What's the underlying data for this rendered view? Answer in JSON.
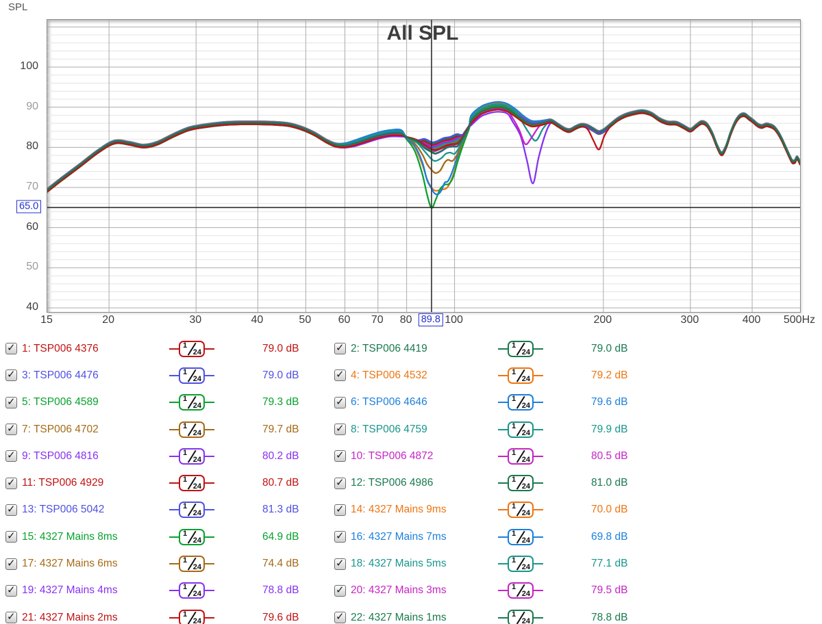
{
  "chart_data": {
    "type": "line",
    "title": "All SPL",
    "ylabel": "SPL",
    "x_unit": "Hz",
    "xlim": [
      15,
      500
    ],
    "ylim": [
      38.98,
      111.76
    ],
    "grid": {
      "minor_db_step": 2,
      "major_db_step": 10,
      "x_gridline_freqs": [
        20,
        30,
        40,
        50,
        60,
        70,
        80,
        90,
        100,
        200,
        300,
        400
      ]
    },
    "x_tick_labels": [
      {
        "f": 15,
        "t": "15"
      },
      {
        "f": 20,
        "t": "20"
      },
      {
        "f": 30,
        "t": "30"
      },
      {
        "f": 40,
        "t": "40"
      },
      {
        "f": 50,
        "t": "50"
      },
      {
        "f": 60,
        "t": "60"
      },
      {
        "f": 70,
        "t": "70"
      },
      {
        "f": 80,
        "t": "80"
      },
      {
        "f": 100,
        "t": "100"
      },
      {
        "f": 200,
        "t": "200"
      },
      {
        "f": 300,
        "t": "300"
      },
      {
        "f": 400,
        "t": "400"
      },
      {
        "f": 500,
        "t": "500Hz"
      }
    ],
    "y_tick_labels": [
      {
        "db": 100,
        "t": "100",
        "shade": "dark"
      },
      {
        "db": 90,
        "t": "90",
        "shade": "light"
      },
      {
        "db": 80,
        "t": "80",
        "shade": "dark"
      },
      {
        "db": 70,
        "t": "70",
        "shade": "light"
      },
      {
        "db": 60,
        "t": "60",
        "shade": "dark"
      },
      {
        "db": 50,
        "t": "50",
        "shade": "light"
      },
      {
        "db": 40,
        "t": "40",
        "shade": "dark"
      }
    ],
    "cursor": {
      "freq": 89.8,
      "db": 65.0,
      "freq_label": "89.8",
      "db_label": "65.0"
    },
    "base_low": [
      [
        15,
        69.3
      ],
      [
        16,
        72.0
      ],
      [
        17.5,
        75.6
      ],
      [
        19,
        79.0
      ],
      [
        20.5,
        81.3
      ],
      [
        22,
        81.0
      ],
      [
        23.5,
        80.3
      ],
      [
        25,
        81.0
      ],
      [
        27,
        83.0
      ],
      [
        29,
        84.6
      ],
      [
        31,
        85.3
      ],
      [
        34,
        85.9
      ],
      [
        37,
        86.1
      ],
      [
        40,
        86.1
      ],
      [
        43,
        86.0
      ],
      [
        46,
        85.7
      ],
      [
        49,
        84.8
      ],
      [
        52,
        83.4
      ],
      [
        55,
        81.6
      ],
      [
        57.5,
        80.5
      ],
      [
        60,
        80.3
      ],
      [
        63,
        80.8
      ],
      [
        66,
        81.6
      ],
      [
        70,
        82.6
      ],
      [
        74,
        83.2
      ],
      [
        78,
        83.2
      ]
    ],
    "base_high": [
      [
        108,
        86.2
      ],
      [
        113,
        88.4
      ],
      [
        118,
        89.3
      ],
      [
        123,
        89.6
      ],
      [
        128,
        89.1
      ],
      [
        133,
        87.8
      ],
      [
        138,
        86.4
      ],
      [
        143,
        85.5
      ],
      [
        148,
        85.7
      ],
      [
        153,
        86.2
      ],
      [
        157,
        86.5
      ],
      [
        162,
        85.5
      ],
      [
        167,
        84.5
      ],
      [
        171,
        84.2
      ],
      [
        176,
        85.0
      ],
      [
        181,
        85.5
      ],
      [
        186,
        85.2
      ],
      [
        191,
        84.4
      ],
      [
        196,
        83.7
      ],
      [
        201,
        84.3
      ],
      [
        207,
        85.6
      ],
      [
        214,
        87.0
      ],
      [
        222,
        88.0
      ],
      [
        231,
        88.6
      ],
      [
        240,
        88.9
      ],
      [
        250,
        88.3
      ],
      [
        260,
        86.9
      ],
      [
        270,
        86.1
      ],
      [
        281,
        86.0
      ],
      [
        291,
        85.1
      ],
      [
        300,
        84.3
      ],
      [
        308,
        85.3
      ],
      [
        316,
        86.2
      ],
      [
        324,
        85.6
      ],
      [
        332,
        83.4
      ],
      [
        340,
        80.2
      ],
      [
        347,
        78.4
      ],
      [
        354,
        80.1
      ],
      [
        362,
        83.6
      ],
      [
        370,
        86.3
      ],
      [
        378,
        87.8
      ],
      [
        386,
        88.1
      ],
      [
        394,
        87.3
      ],
      [
        402,
        86.5
      ],
      [
        410,
        85.6
      ],
      [
        418,
        85.2
      ],
      [
        427,
        85.6
      ],
      [
        435,
        85.4
      ],
      [
        443,
        84.9
      ],
      [
        451,
        83.7
      ],
      [
        459,
        82.0
      ],
      [
        467,
        80.0
      ],
      [
        475,
        78.0
      ],
      [
        482,
        76.5
      ],
      [
        488,
        76.5
      ],
      [
        493,
        77.4
      ],
      [
        500,
        76.1
      ]
    ],
    "tsp_dip_template": [
      {
        "f": 80,
        "db": 82.6
      },
      {
        "f": 84,
        "db": 81.8
      },
      {
        "f": 87,
        "dv": 0.8
      },
      {
        "f": 89.8,
        "dv": 0
      },
      {
        "f": 92,
        "dv": 0.2
      },
      {
        "f": 95,
        "dv": 1.0
      },
      {
        "f": 98,
        "dv": 1.3
      },
      {
        "f": 101,
        "dv": 2.0
      },
      {
        "f": 104,
        "db": 83.2
      },
      {
        "f": 107,
        "db": 85.4
      }
    ],
    "series": [
      {
        "n": 1,
        "label": "1: TSP006 4376",
        "color": "#c11212",
        "smoothing": "1/24",
        "value_db": 79.0,
        "value_label": "79.0 dB",
        "checked": true,
        "spread": 0.2
      },
      {
        "n": 2,
        "label": "2: TSP006 4419",
        "color": "#1a7a4d",
        "smoothing": "1/24",
        "value_db": 79.0,
        "value_label": "79.0 dB",
        "checked": true,
        "spread": 0.5
      },
      {
        "n": 3,
        "label": "3: TSP006 4476",
        "color": "#4f51e3",
        "smoothing": "1/24",
        "value_db": 79.0,
        "value_label": "79.0 dB",
        "checked": true,
        "spread": 0.9
      },
      {
        "n": 4,
        "label": "4: TSP006 4532",
        "color": "#ee7511",
        "smoothing": "1/24",
        "value_db": 79.2,
        "value_label": "79.2 dB",
        "checked": true,
        "spread": 1.3
      },
      {
        "n": 5,
        "label": "5: TSP006 4589",
        "color": "#08a22e",
        "smoothing": "1/24",
        "value_db": 79.3,
        "value_label": "79.3 dB",
        "checked": true,
        "spread": 0.4
      },
      {
        "n": 6,
        "label": "6: TSP006 4646",
        "color": "#1b7fdd",
        "smoothing": "1/24",
        "value_db": 79.6,
        "value_label": "79.6 dB",
        "checked": true,
        "spread": 1.5
      },
      {
        "n": 7,
        "label": "7: TSP006 4702",
        "color": "#a56a16",
        "smoothing": "1/24",
        "value_db": 79.7,
        "value_label": "79.7 dB",
        "checked": true,
        "spread": 1.0
      },
      {
        "n": 8,
        "label": "8: TSP006 4759",
        "color": "#18968c",
        "smoothing": "1/24",
        "value_db": 79.9,
        "value_label": "79.9 dB",
        "checked": true,
        "spread": 1.4
      },
      {
        "n": 9,
        "label": "9: TSP006 4816",
        "color": "#8631f2",
        "smoothing": "1/24",
        "value_db": 80.2,
        "value_label": "80.2 dB",
        "checked": true,
        "spread": -0.3
      },
      {
        "n": 10,
        "label": "10: TSP006 4872",
        "color": "#c624c6",
        "smoothing": "1/24",
        "value_db": 80.5,
        "value_label": "80.5 dB",
        "checked": true,
        "spread": 0.7
      },
      {
        "n": 11,
        "label": "11: TSP006 4929",
        "color": "#c11212",
        "smoothing": "1/24",
        "value_db": 80.7,
        "value_label": "80.7 dB",
        "checked": true,
        "spread": 0.0
      },
      {
        "n": 12,
        "label": "12: TSP006 4986",
        "color": "#1a7a4d",
        "smoothing": "1/24",
        "value_db": 81.0,
        "value_label": "81.0 dB",
        "checked": true,
        "spread": 0.8
      },
      {
        "n": 13,
        "label": "13: TSP006 5042",
        "color": "#4f51e3",
        "smoothing": "1/24",
        "value_db": 81.3,
        "value_label": "81.3 dB",
        "checked": true,
        "spread": 1.1
      },
      {
        "n": 14,
        "label": "14: 4327 Mains 9ms",
        "color": "#ee7511",
        "smoothing": "1/24",
        "value_db": 70.0,
        "value_label": "70.0 dB",
        "checked": true,
        "spread": 1.2,
        "dip": [
          [
            80,
            82.2
          ],
          [
            83,
            80.2
          ],
          [
            86,
            75.8
          ],
          [
            88,
            72.0
          ],
          [
            89.8,
            70.0
          ],
          [
            91.5,
            69.2
          ],
          [
            94,
            69.5
          ],
          [
            96.5,
            69.9
          ],
          [
            99,
            72.5
          ],
          [
            101.5,
            77.0
          ],
          [
            104,
            81.5
          ],
          [
            107,
            85.0
          ]
        ]
      },
      {
        "n": 15,
        "label": "15: 4327 Mains 8ms",
        "color": "#08a22e",
        "smoothing": "1/24",
        "value_db": 64.9,
        "value_label": "64.9 dB",
        "checked": true,
        "spread": 0.3,
        "dip": [
          [
            80,
            82.0
          ],
          [
            83,
            79.2
          ],
          [
            86,
            73.5
          ],
          [
            88,
            68.2
          ],
          [
            89.8,
            64.9
          ],
          [
            91.5,
            66.8
          ],
          [
            93.5,
            69.6
          ],
          [
            95.5,
            70.7
          ],
          [
            97.5,
            70.9
          ],
          [
            99.5,
            72.8
          ],
          [
            101.5,
            76.5
          ],
          [
            104,
            80.5
          ],
          [
            107,
            84.6
          ]
        ]
      },
      {
        "n": 16,
        "label": "16: 4327 Mains 7ms",
        "color": "#1b7fdd",
        "smoothing": "1/24",
        "value_db": 69.8,
        "value_label": "69.8 dB",
        "checked": true,
        "spread": 1.4,
        "dip": [
          [
            80,
            82.2
          ],
          [
            83,
            80.4
          ],
          [
            86,
            76.4
          ],
          [
            88,
            71.8
          ],
          [
            89.8,
            69.8
          ],
          [
            91,
            68.6
          ],
          [
            92.5,
            68.3
          ],
          [
            94,
            69.2
          ],
          [
            95.5,
            71.2
          ],
          [
            97,
            71.6
          ],
          [
            99,
            74.0
          ],
          [
            101.5,
            78.0
          ],
          [
            104,
            81.8
          ],
          [
            107,
            84.8
          ]
        ]
      },
      {
        "n": 17,
        "label": "17: 4327 Mains 6ms",
        "color": "#a56a16",
        "smoothing": "1/24",
        "value_db": 74.4,
        "value_label": "74.4 dB",
        "checked": true,
        "spread": 0.6,
        "dip": [
          [
            80,
            82.4
          ],
          [
            83,
            81.0
          ],
          [
            86,
            78.3
          ],
          [
            88,
            75.8
          ],
          [
            89.8,
            74.4
          ],
          [
            91.5,
            73.6
          ],
          [
            93.5,
            74.2
          ],
          [
            95.5,
            76.2
          ],
          [
            97,
            76.9
          ],
          [
            99,
            76.6
          ],
          [
            101,
            78.0
          ],
          [
            104,
            81.5
          ],
          [
            107,
            84.8
          ]
        ]
      },
      {
        "n": 18,
        "label": "18: 4327 Mains 5ms",
        "color": "#18968c",
        "smoothing": "1/24",
        "value_db": 77.1,
        "value_label": "77.1 dB",
        "checked": true,
        "spread": 0.9,
        "dip": [
          [
            80,
            82.5
          ],
          [
            84,
            81.1
          ],
          [
            87,
            79.0
          ],
          [
            89.8,
            77.1
          ],
          [
            91.5,
            76.6
          ],
          [
            94,
            77.3
          ],
          [
            96,
            78.4
          ],
          [
            98,
            78.7
          ],
          [
            100,
            78.4
          ],
          [
            102,
            79.8
          ],
          [
            104.5,
            82.3
          ],
          [
            107,
            84.9
          ]
        ],
        "mid": [
          [
            136,
            86.0
          ],
          [
            141,
            83.0
          ],
          [
            146,
            81.0
          ],
          [
            151,
            84.2
          ],
          [
            156,
            86.4
          ]
        ]
      },
      {
        "n": 19,
        "label": "19: 4327 Mains 4ms",
        "color": "#8631f2",
        "smoothing": "1/24",
        "value_db": 78.8,
        "value_label": "78.8 dB",
        "checked": true,
        "spread": -0.5,
        "dip": [
          [
            80,
            82.5
          ],
          [
            84,
            81.5
          ],
          [
            87,
            80.0
          ],
          [
            89.8,
            78.8
          ],
          [
            91.5,
            78.4
          ],
          [
            94,
            79.0
          ],
          [
            96.5,
            79.9
          ],
          [
            99,
            80.2
          ],
          [
            101.5,
            80.3
          ],
          [
            104,
            82.2
          ],
          [
            107,
            85.0
          ]
        ],
        "mid": [
          [
            131,
            87.2
          ],
          [
            136,
            83.5
          ],
          [
            140,
            77.5
          ],
          [
            144,
            71.5
          ],
          [
            148,
            78.0
          ],
          [
            153,
            84.0
          ],
          [
            157,
            86.4
          ]
        ]
      },
      {
        "n": 20,
        "label": "20: 4327 Mains 3ms",
        "color": "#c624c6",
        "smoothing": "1/24",
        "value_db": 79.5,
        "value_label": "79.5 dB",
        "checked": true,
        "spread": -0.2,
        "dip": [
          [
            80,
            82.6
          ],
          [
            84,
            81.8
          ],
          [
            87,
            80.5
          ],
          [
            89.8,
            79.5
          ],
          [
            91.5,
            79.2
          ],
          [
            94,
            79.7
          ],
          [
            96.5,
            80.4
          ],
          [
            99,
            80.7
          ],
          [
            101.5,
            80.9
          ],
          [
            104,
            82.6
          ],
          [
            107,
            85.2
          ]
        ],
        "mid": [
          [
            131,
            87.4
          ],
          [
            135,
            84.5
          ],
          [
            139,
            80.8
          ],
          [
            143,
            82.3
          ],
          [
            148,
            85.0
          ],
          [
            153,
            86.3
          ]
        ]
      },
      {
        "n": 21,
        "label": "21: 4327 Mains 2ms",
        "color": "#c11212",
        "smoothing": "1/24",
        "value_db": 79.6,
        "value_label": "79.6 dB",
        "checked": true,
        "spread": 0.1,
        "dip": [
          [
            80,
            82.6
          ],
          [
            84,
            81.8
          ],
          [
            87,
            80.6
          ],
          [
            89.8,
            79.6
          ],
          [
            91.5,
            79.3
          ],
          [
            94,
            79.8
          ],
          [
            96.5,
            80.5
          ],
          [
            99,
            80.8
          ],
          [
            101.5,
            81.0
          ],
          [
            104,
            82.7
          ],
          [
            107,
            85.2
          ]
        ],
        "mid": [
          [
            186,
            84.8
          ],
          [
            191,
            82.0
          ],
          [
            196,
            79.8
          ],
          [
            201,
            83.2
          ]
        ]
      },
      {
        "n": 22,
        "label": "22: 4327 Mains 1ms",
        "color": "#1a7a4d",
        "smoothing": "1/24",
        "value_db": 78.8,
        "value_label": "78.8 dB",
        "checked": true,
        "spread": 0.3,
        "dip": [
          [
            80,
            82.5
          ],
          [
            84,
            81.5
          ],
          [
            87,
            79.9
          ],
          [
            89.8,
            78.8
          ],
          [
            91.5,
            78.5
          ],
          [
            94,
            79.1
          ],
          [
            96.5,
            80.0
          ],
          [
            99,
            80.3
          ],
          [
            101.5,
            80.4
          ],
          [
            104,
            82.3
          ],
          [
            107,
            85.0
          ]
        ]
      }
    ],
    "legend_position": "bottom",
    "colors": {
      "axis_label_dark": "#3c3c3c",
      "axis_label_light": "#9b9b9b",
      "grid_major": "#ababab",
      "grid_minor": "#e4e4e4",
      "cursor_line": "#2b2b2b",
      "cursor_readout": "#2330cc",
      "title": "#3d3d3d"
    }
  }
}
